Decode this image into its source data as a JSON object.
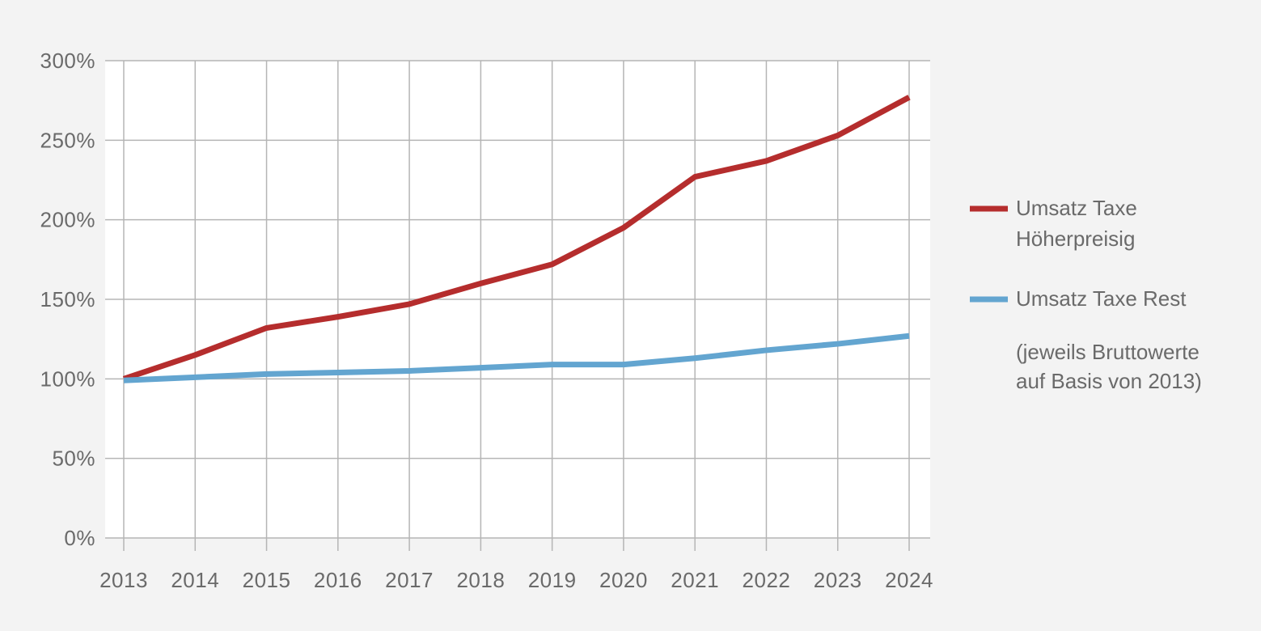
{
  "chart_data": {
    "type": "line",
    "x": [
      "2013",
      "2014",
      "2015",
      "2016",
      "2017",
      "2018",
      "2019",
      "2020",
      "2021",
      "2022",
      "2023",
      "2024"
    ],
    "series": [
      {
        "name": "Umsatz Taxe Höherpreisig",
        "name_lines": [
          "Umsatz Taxe",
          "Höherpreisig"
        ],
        "color": "#b52d2d",
        "values": [
          100,
          115,
          132,
          139,
          147,
          160,
          172,
          195,
          227,
          237,
          253,
          277
        ]
      },
      {
        "name": "Umsatz Taxe Rest",
        "name_lines": [
          "Umsatz Taxe Rest"
        ],
        "color": "#63a5d0",
        "values": [
          99,
          101,
          103,
          104,
          105,
          107,
          109,
          109,
          113,
          118,
          122,
          127
        ]
      }
    ],
    "y_ticks": [
      "0%",
      "50%",
      "100%",
      "150%",
      "200%",
      "250%",
      "300%"
    ],
    "y_tick_values": [
      0,
      50,
      100,
      150,
      200,
      250,
      300
    ],
    "ylim": [
      0,
      300
    ],
    "grid": true,
    "legend_placement": "right",
    "note_lines": [
      "(jeweils Bruttowerte",
      "auf Basis von 2013)"
    ]
  }
}
